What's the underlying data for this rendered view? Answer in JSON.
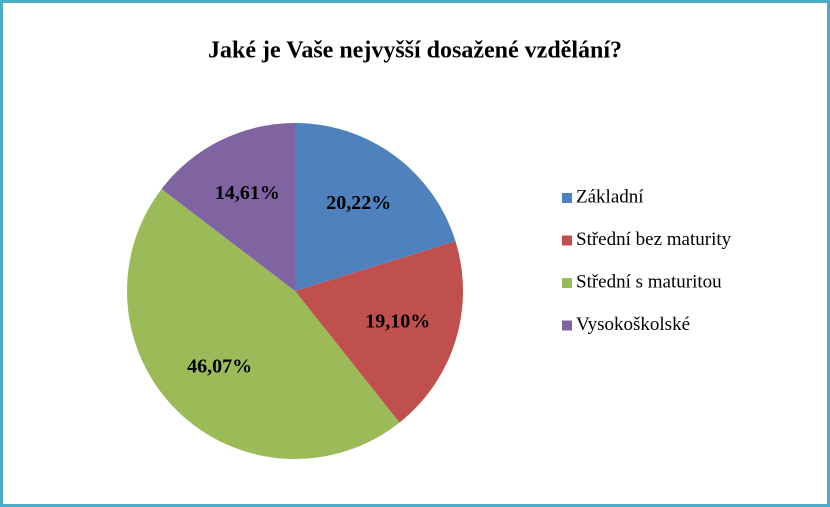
{
  "chart_data": {
    "type": "pie",
    "title": "Jaké je Vaše nejvyšší dosažené vzdělání?",
    "categories": [
      "Základní",
      "Střední bez maturity",
      "Střední s maturitou",
      "Vysokoškolské"
    ],
    "values": [
      20.22,
      19.1,
      46.07,
      14.61
    ],
    "value_labels": [
      "20,22%",
      "19,10%",
      "46,07%",
      "14,61%"
    ],
    "colors": [
      "#4f81bd",
      "#c0504d",
      "#9bbb59",
      "#8064a2"
    ],
    "legend": "right"
  }
}
